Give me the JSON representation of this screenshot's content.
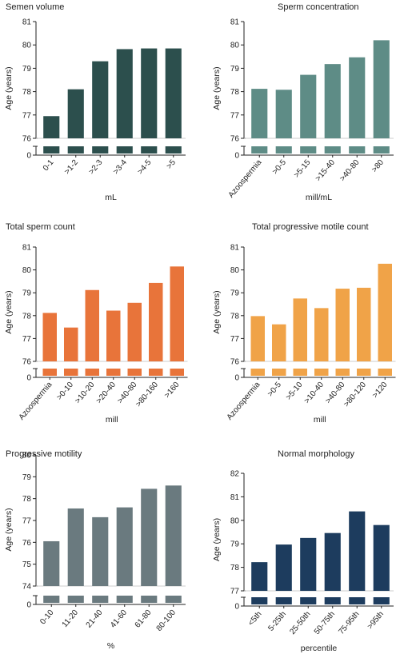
{
  "chart_data": [
    {
      "type": "bar",
      "title": "Semen volume",
      "xlabel": "mL",
      "ylabel": "Age (years)",
      "categories": [
        "0-1",
        ">1-2",
        ">2-3",
        ">3-4",
        ">4-5",
        ">5"
      ],
      "values": [
        76.95,
        78.1,
        79.3,
        79.82,
        79.85,
        79.85
      ],
      "ylim": [
        76,
        81
      ],
      "yticks": [
        "76",
        "77",
        "78",
        "79",
        "80",
        "81"
      ],
      "axis_break": true,
      "break_tick": "0",
      "color": "#2c4f4d"
    },
    {
      "type": "bar",
      "title": "Sperm concentration",
      "xlabel": "mill/mL",
      "ylabel": "Age (years)",
      "categories": [
        "Azoospermia",
        ">0-5",
        ">5-15",
        ">15-40",
        ">40-80",
        ">80"
      ],
      "values": [
        78.12,
        78.08,
        78.72,
        79.18,
        79.47,
        80.2
      ],
      "ylim": [
        76,
        81
      ],
      "yticks": [
        "76",
        "77",
        "78",
        "79",
        "80",
        "81"
      ],
      "axis_break": true,
      "break_tick": "0",
      "color": "#5e8c86"
    },
    {
      "type": "bar",
      "title": "Total sperm count",
      "xlabel": "mill",
      "ylabel": "Age (years)",
      "categories": [
        "Azoospermia",
        ">0-10",
        ">10-20",
        ">20-40",
        ">40-80",
        ">80-160",
        ">160"
      ],
      "values": [
        78.12,
        77.48,
        79.12,
        78.22,
        78.56,
        79.43,
        80.15
      ],
      "ylim": [
        76,
        81
      ],
      "yticks": [
        "76",
        "77",
        "78",
        "79",
        "80",
        "81"
      ],
      "axis_break": true,
      "break_tick": "0",
      "color": "#e8743a"
    },
    {
      "type": "bar",
      "title": "Total progressive motile count",
      "xlabel": "mill",
      "ylabel": "Age (years)",
      "categories": [
        "Azoospermia",
        ">0-5",
        ">5-10",
        ">10-40",
        ">40-80",
        ">80-120",
        ">120"
      ],
      "values": [
        77.98,
        77.62,
        78.75,
        78.33,
        79.18,
        79.22,
        80.27
      ],
      "ylim": [
        76,
        81
      ],
      "yticks": [
        "76",
        "77",
        "78",
        "79",
        "80",
        "81"
      ],
      "axis_break": true,
      "break_tick": "0",
      "color": "#f0a348"
    },
    {
      "type": "bar",
      "title": "Progressive motility",
      "xlabel": "%",
      "ylabel": "Age (years)",
      "categories": [
        "0-10",
        "11-20",
        "21-40",
        "41-60",
        "61-80",
        "80-100"
      ],
      "values": [
        76.05,
        77.55,
        77.15,
        77.6,
        78.45,
        78.6
      ],
      "ylim": [
        74,
        80
      ],
      "yticks": [
        "74",
        "75",
        "76",
        "77",
        "78",
        "79",
        "80"
      ],
      "axis_break": true,
      "break_tick": "0",
      "color": "#6a7a7f"
    },
    {
      "type": "bar",
      "title": "Normal morphology",
      "xlabel": "percentile",
      "ylabel": "Age (years)",
      "categories": [
        "<5th",
        "5-25th",
        "25-50th",
        "50-75th",
        "75-95th",
        ">95th"
      ],
      "values": [
        78.22,
        78.97,
        79.25,
        79.46,
        80.38,
        79.8
      ],
      "ylim": [
        77,
        82
      ],
      "yticks": [
        "77",
        "78",
        "79",
        "80",
        "81",
        "82"
      ],
      "axis_break": true,
      "break_tick": "0",
      "color": "#1d3c5e"
    }
  ]
}
